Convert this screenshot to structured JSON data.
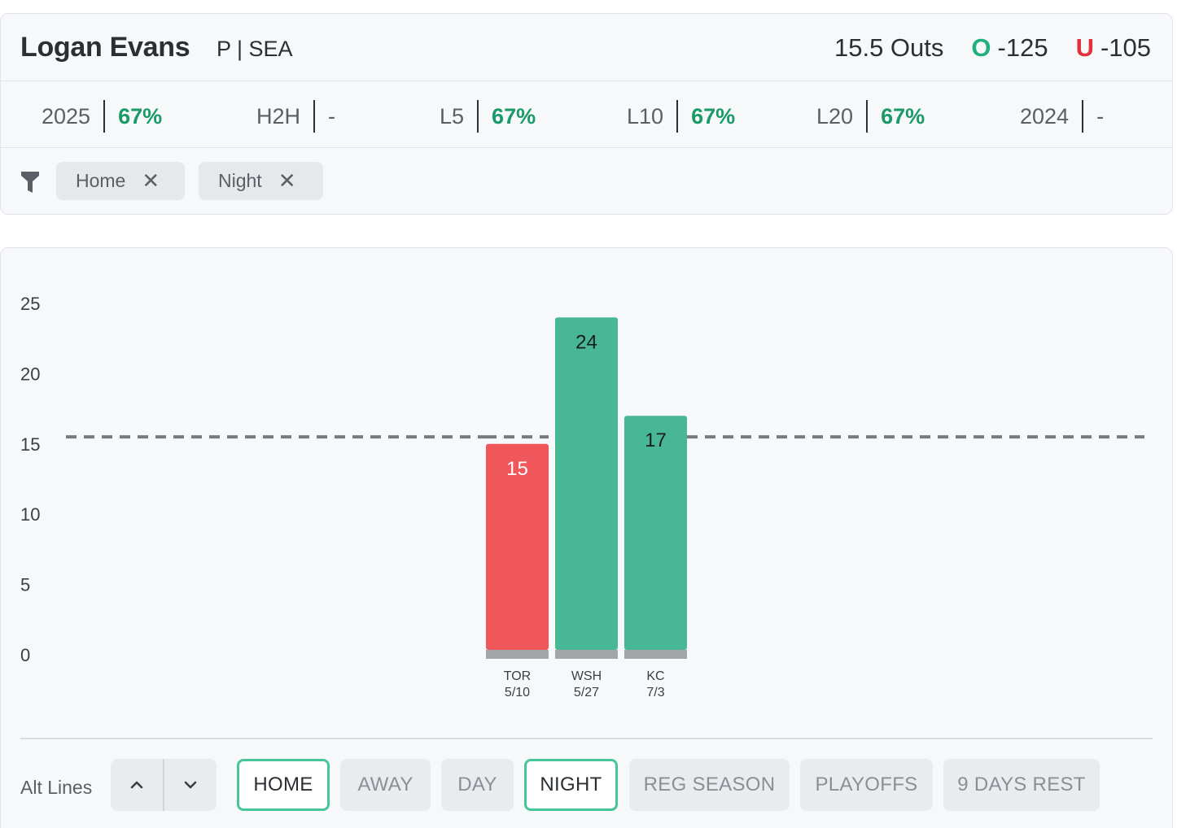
{
  "player": {
    "name": "Logan Evans",
    "position_team": "P | SEA"
  },
  "line": {
    "value": "15.5 Outs",
    "over_mark": "O",
    "over_odds": "-125",
    "under_mark": "U",
    "under_odds": "-105"
  },
  "stats": [
    {
      "label": "2025",
      "value": "67%"
    },
    {
      "label": "H2H",
      "value": "-"
    },
    {
      "label": "L5",
      "value": "67%"
    },
    {
      "label": "L10",
      "value": "67%"
    },
    {
      "label": "L20",
      "value": "67%"
    },
    {
      "label": "2024",
      "value": "-"
    }
  ],
  "filters": {
    "icon": "filter-funnel-icon",
    "chips": [
      "Home",
      "Night"
    ],
    "remove_glyph": "✕"
  },
  "chart_data": {
    "type": "bar",
    "categories": [
      "TOR 5/10",
      "WSH 5/27",
      "KC 7/3"
    ],
    "category_team": [
      "TOR",
      "WSH",
      "KC"
    ],
    "category_date": [
      "5/10",
      "5/27",
      "7/3"
    ],
    "values": [
      15,
      24,
      17
    ],
    "threshold": 15.5,
    "ylim": [
      0,
      25
    ],
    "yticks": [
      0,
      5,
      10,
      15,
      20,
      25
    ],
    "colors": {
      "over": "#47b893",
      "under": "#f0575a",
      "threshold": "#777b80",
      "base": "#a3a5a8"
    }
  },
  "bottom": {
    "alt_lines_label": "Alt Lines",
    "up_icon": "chevron-up-icon",
    "down_icon": "chevron-down-icon",
    "pills": [
      {
        "label": "HOME",
        "active": true
      },
      {
        "label": "AWAY",
        "active": false
      },
      {
        "label": "DAY",
        "active": false
      },
      {
        "label": "NIGHT",
        "active": true
      },
      {
        "label": "REG SEASON",
        "active": false
      },
      {
        "label": "PLAYOFFS",
        "active": false
      },
      {
        "label": "9 DAYS REST",
        "active": false
      }
    ]
  }
}
